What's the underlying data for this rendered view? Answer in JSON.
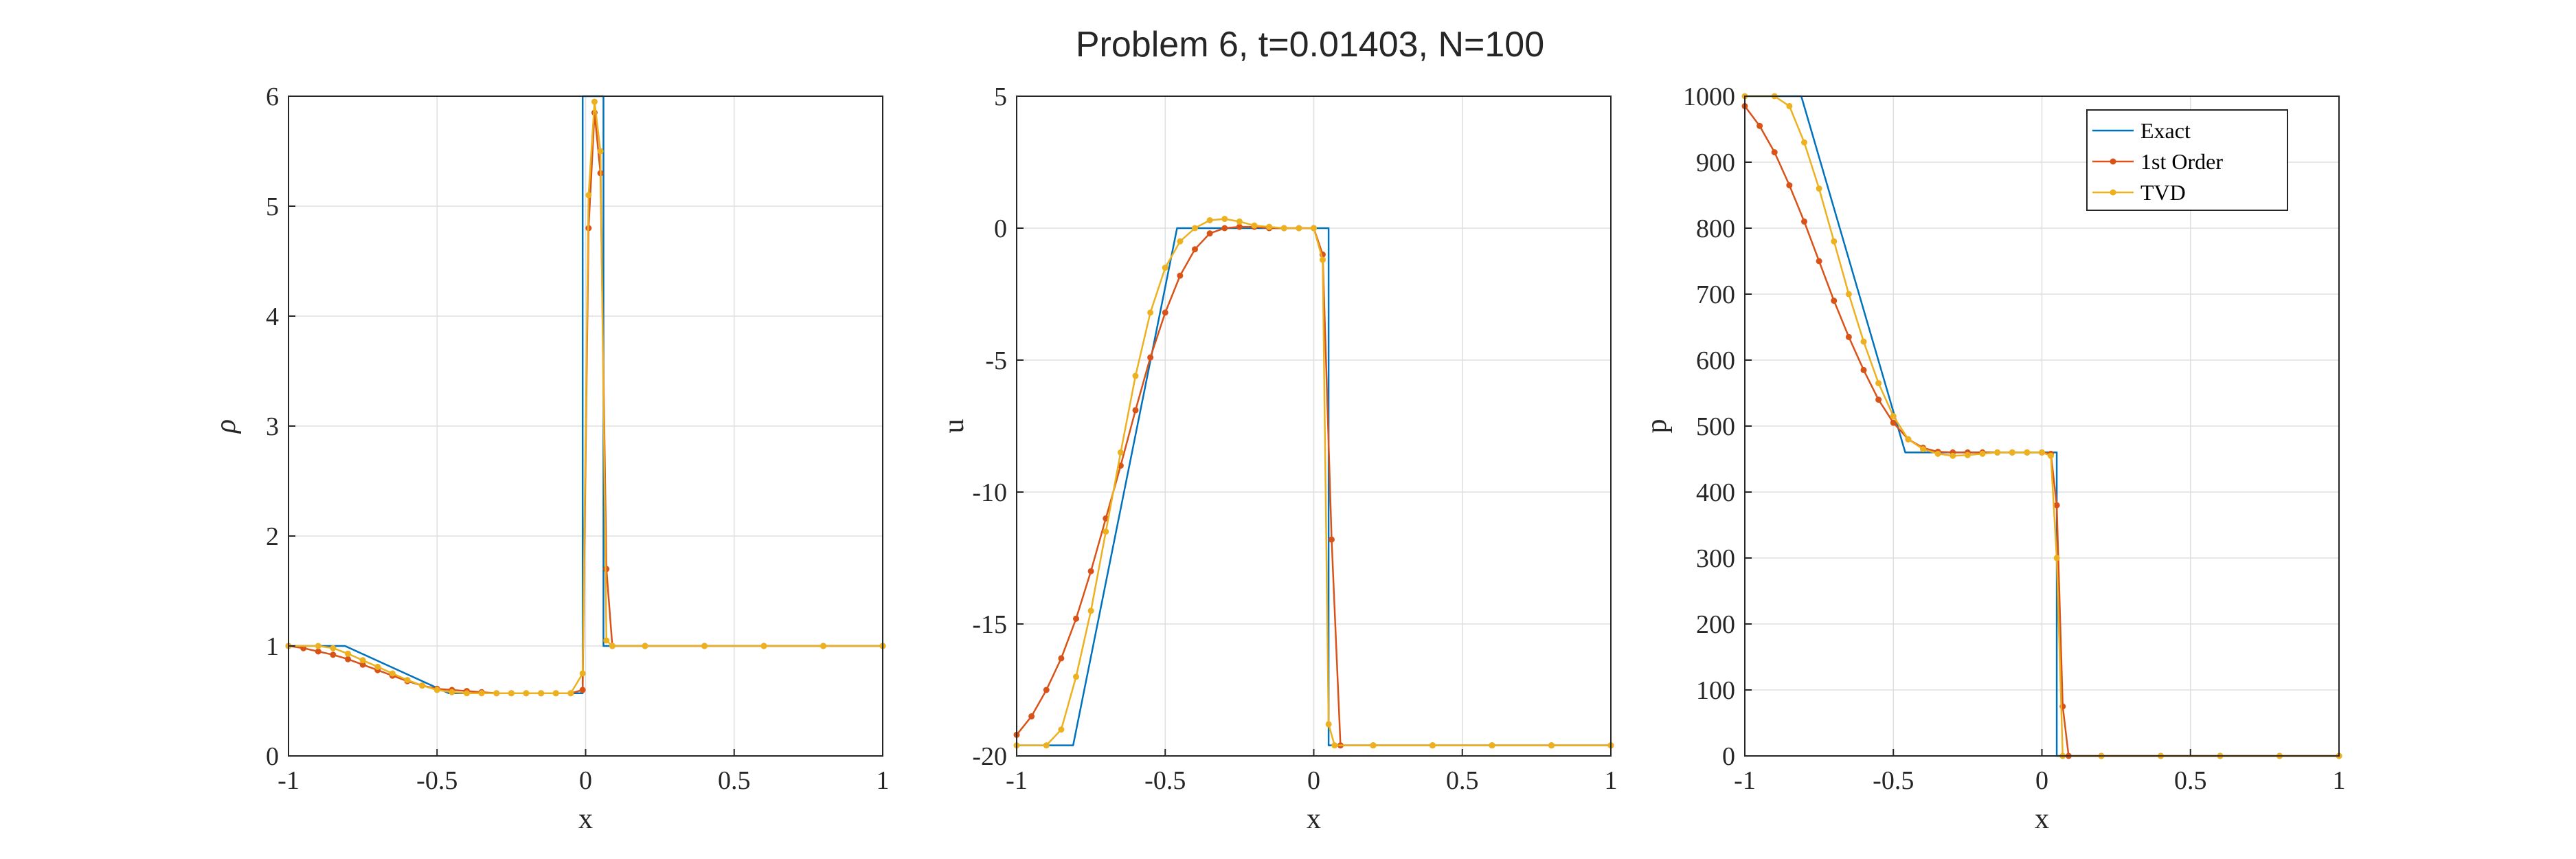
{
  "title": "Problem 6, t=0.01403, N=100",
  "colors": {
    "exact": "#0072BD",
    "first": "#D95319",
    "tvd": "#EDB120",
    "grid": "#DFDFDF",
    "axis": "#262626"
  },
  "legend": [
    "Exact",
    "1st Order",
    "TVD"
  ],
  "chart_data": [
    {
      "type": "line",
      "xlabel": "x",
      "ylabel": "ρ",
      "xlim": [
        -1,
        1
      ],
      "ylim": [
        0,
        6
      ],
      "xticks": [
        -1,
        -0.5,
        0,
        0.5,
        1
      ],
      "xtick_labels": [
        "-1",
        "-0.5",
        "0",
        "0.5",
        "1"
      ],
      "yticks": [
        0,
        1,
        2,
        3,
        4,
        5,
        6
      ],
      "ytick_labels": [
        "0",
        "1",
        "2",
        "3",
        "4",
        "5",
        "6"
      ],
      "grid": true,
      "series": [
        {
          "name": "Exact",
          "x": [
            -1,
            -0.81,
            -0.46,
            -0.01,
            -0.01,
            0.06,
            0.06,
            1
          ],
          "y": [
            1,
            1,
            0.57,
            0.57,
            6,
            6,
            1,
            1
          ]
        },
        {
          "name": "1st Order",
          "x": [
            -1,
            -0.95,
            -0.9,
            -0.85,
            -0.8,
            -0.75,
            -0.7,
            -0.65,
            -0.6,
            -0.55,
            -0.5,
            -0.45,
            -0.4,
            -0.35,
            -0.3,
            -0.25,
            -0.2,
            -0.15,
            -0.1,
            -0.05,
            -0.01,
            0.01,
            0.03,
            0.05,
            0.07,
            0.09,
            0.2,
            0.4,
            0.6,
            0.8,
            1
          ],
          "y": [
            1,
            0.98,
            0.95,
            0.92,
            0.88,
            0.83,
            0.78,
            0.73,
            0.68,
            0.64,
            0.61,
            0.6,
            0.59,
            0.58,
            0.57,
            0.57,
            0.57,
            0.57,
            0.57,
            0.57,
            0.6,
            4.8,
            5.85,
            5.3,
            1.7,
            1,
            1,
            1,
            1,
            1,
            1
          ]
        },
        {
          "name": "TVD",
          "x": [
            -1,
            -0.9,
            -0.85,
            -0.8,
            -0.75,
            -0.7,
            -0.65,
            -0.6,
            -0.55,
            -0.5,
            -0.45,
            -0.4,
            -0.35,
            -0.3,
            -0.25,
            -0.2,
            -0.15,
            -0.1,
            -0.05,
            -0.01,
            0.01,
            0.03,
            0.05,
            0.07,
            0.09,
            0.2,
            0.4,
            0.6,
            0.8,
            1
          ],
          "y": [
            1,
            1,
            0.98,
            0.93,
            0.87,
            0.81,
            0.75,
            0.69,
            0.64,
            0.6,
            0.58,
            0.57,
            0.57,
            0.57,
            0.57,
            0.57,
            0.57,
            0.57,
            0.57,
            0.75,
            5.1,
            5.95,
            5.5,
            1.05,
            1,
            1,
            1,
            1,
            1,
            1
          ]
        }
      ]
    },
    {
      "type": "line",
      "xlabel": "x",
      "ylabel": "u",
      "xlim": [
        -1,
        1
      ],
      "ylim": [
        -20,
        5
      ],
      "xticks": [
        -1,
        -0.5,
        0,
        0.5,
        1
      ],
      "xtick_labels": [
        "-1",
        "-0.5",
        "0",
        "0.5",
        "1"
      ],
      "yticks": [
        -20,
        -15,
        -10,
        -5,
        0,
        5
      ],
      "ytick_labels": [
        "-20",
        "-15",
        "-10",
        "-5",
        "0",
        "5"
      ],
      "grid": true,
      "series": [
        {
          "name": "Exact",
          "x": [
            -1,
            -0.81,
            -0.46,
            0.05,
            0.05,
            1
          ],
          "y": [
            -19.6,
            -19.6,
            0,
            0,
            -19.6,
            -19.6
          ]
        },
        {
          "name": "1st Order",
          "x": [
            -1,
            -0.95,
            -0.9,
            -0.85,
            -0.8,
            -0.75,
            -0.7,
            -0.65,
            -0.6,
            -0.55,
            -0.5,
            -0.45,
            -0.4,
            -0.35,
            -0.3,
            -0.25,
            -0.2,
            -0.15,
            -0.1,
            -0.05,
            0,
            0.03,
            0.06,
            0.09,
            0.2,
            0.4,
            0.6,
            0.8,
            1
          ],
          "y": [
            -19.2,
            -18.5,
            -17.5,
            -16.3,
            -14.8,
            -13,
            -11,
            -9,
            -6.9,
            -4.9,
            -3.2,
            -1.8,
            -0.8,
            -0.2,
            0,
            0.05,
            0.05,
            0,
            0,
            0,
            0,
            -1,
            -11.8,
            -19.6,
            -19.6,
            -19.6,
            -19.6,
            -19.6,
            -19.6
          ]
        },
        {
          "name": "TVD",
          "x": [
            -1,
            -0.9,
            -0.85,
            -0.8,
            -0.75,
            -0.7,
            -0.65,
            -0.6,
            -0.55,
            -0.5,
            -0.45,
            -0.4,
            -0.35,
            -0.3,
            -0.25,
            -0.2,
            -0.15,
            -0.1,
            -0.05,
            0,
            0.03,
            0.05,
            0.07,
            0.2,
            0.4,
            0.6,
            0.8,
            1
          ],
          "y": [
            -19.6,
            -19.6,
            -19,
            -17,
            -14.5,
            -11.5,
            -8.5,
            -5.6,
            -3.2,
            -1.5,
            -0.5,
            0,
            0.3,
            0.35,
            0.25,
            0.1,
            0.05,
            0,
            0,
            0,
            -1.2,
            -18.8,
            -19.6,
            -19.6,
            -19.6,
            -19.6,
            -19.6,
            -19.6
          ]
        }
      ]
    },
    {
      "type": "line",
      "xlabel": "x",
      "ylabel": "p",
      "xlim": [
        -1,
        1
      ],
      "ylim": [
        0,
        1000
      ],
      "xticks": [
        -1,
        -0.5,
        0,
        0.5,
        1
      ],
      "xtick_labels": [
        "-1",
        "-0.5",
        "0",
        "0.5",
        "1"
      ],
      "yticks": [
        0,
        100,
        200,
        300,
        400,
        500,
        600,
        700,
        800,
        900,
        1000
      ],
      "ytick_labels": [
        "0",
        "100",
        "200",
        "300",
        "400",
        "500",
        "600",
        "700",
        "800",
        "900",
        "1000"
      ],
      "grid": true,
      "legend_position": "top-right",
      "series": [
        {
          "name": "Exact",
          "x": [
            -1,
            -0.81,
            -0.46,
            0.05,
            0.05,
            1
          ],
          "y": [
            1000,
            1000,
            460,
            460,
            0,
            0
          ]
        },
        {
          "name": "1st Order",
          "x": [
            -1,
            -0.95,
            -0.9,
            -0.85,
            -0.8,
            -0.75,
            -0.7,
            -0.65,
            -0.6,
            -0.55,
            -0.5,
            -0.45,
            -0.4,
            -0.35,
            -0.3,
            -0.25,
            -0.2,
            -0.15,
            -0.1,
            -0.05,
            0,
            0.03,
            0.05,
            0.07,
            0.09,
            0.2,
            0.4,
            0.6,
            0.8,
            1
          ],
          "y": [
            985,
            955,
            915,
            865,
            810,
            750,
            690,
            635,
            585,
            540,
            505,
            480,
            467,
            461,
            460,
            460,
            460,
            460,
            460,
            460,
            460,
            458,
            380,
            75,
            0,
            0,
            0,
            0,
            0,
            0
          ]
        },
        {
          "name": "TVD",
          "x": [
            -1,
            -0.9,
            -0.85,
            -0.8,
            -0.75,
            -0.7,
            -0.65,
            -0.6,
            -0.55,
            -0.5,
            -0.45,
            -0.4,
            -0.35,
            -0.3,
            -0.25,
            -0.2,
            -0.15,
            -0.1,
            -0.05,
            0,
            0.03,
            0.05,
            0.07,
            0.2,
            0.4,
            0.6,
            0.8,
            1
          ],
          "y": [
            1000,
            1000,
            985,
            930,
            860,
            780,
            700,
            628,
            565,
            515,
            480,
            465,
            458,
            455,
            456,
            458,
            460,
            460,
            460,
            460,
            455,
            300,
            0,
            0,
            0,
            0,
            0,
            0
          ]
        }
      ]
    }
  ]
}
